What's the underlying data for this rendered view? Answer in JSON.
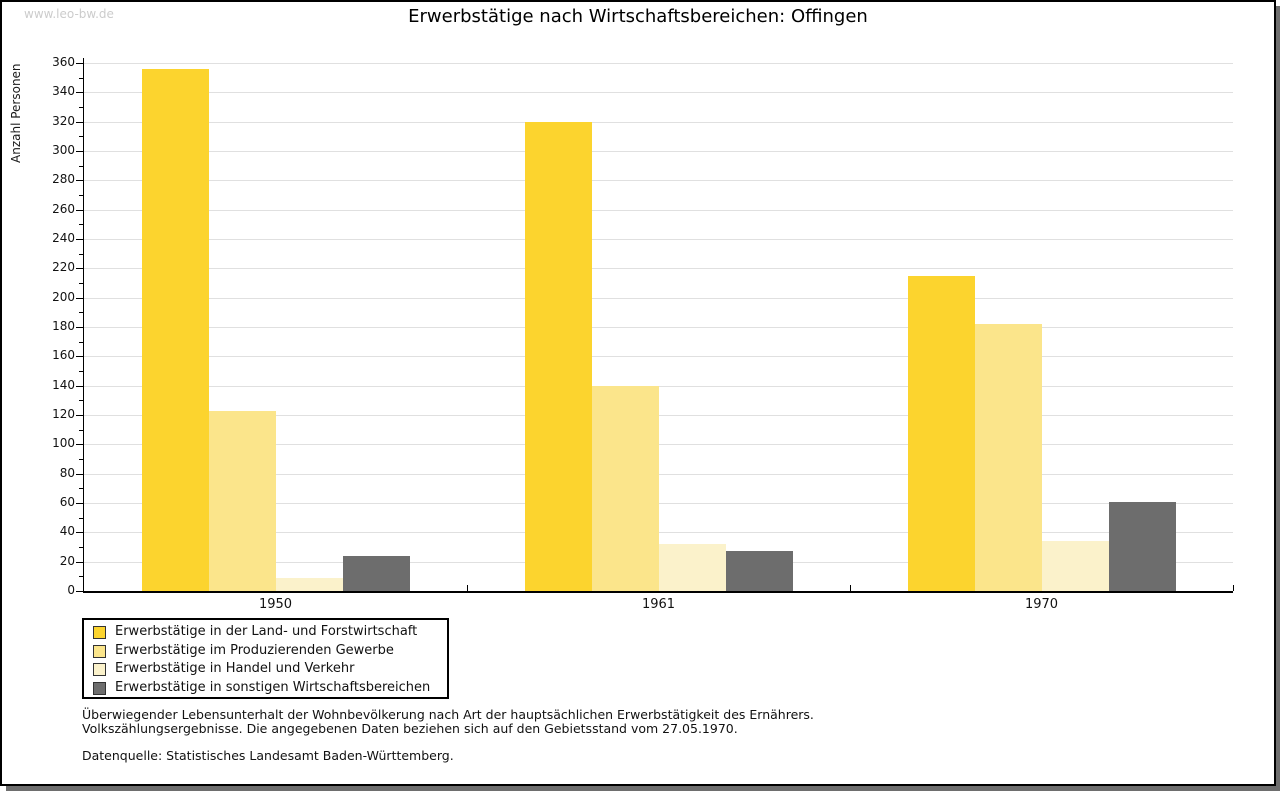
{
  "watermark": "www.leo-bw.de",
  "title": "Erwerbstätige nach Wirtschaftsbereichen: Offingen",
  "chart_data": {
    "type": "bar",
    "title": "Erwerbstätige nach Wirtschaftsbereichen: Offingen",
    "ylabel": "Anzahl Personen",
    "xlabel": "",
    "categories": [
      "1950",
      "1961",
      "1970"
    ],
    "series": [
      {
        "name": "Erwerbstätige in der Land- und Forstwirtschaft",
        "color": "#fcd42e",
        "values": [
          356,
          320,
          215
        ]
      },
      {
        "name": "Erwerbstätige im Produzierenden Gewerbe",
        "color": "#fbe58b",
        "values": [
          123,
          140,
          182
        ]
      },
      {
        "name": "Erwerbstätige in Handel und Verkehr",
        "color": "#fbf2cb",
        "values": [
          9,
          32,
          34
        ]
      },
      {
        "name": "Erwerbstätige in sonstigen Wirtschaftsbereichen",
        "color": "#6d6d6d",
        "values": [
          24,
          27,
          61
        ]
      }
    ],
    "ylim": [
      0,
      360
    ],
    "ytick_step": 20,
    "ytick_minor_step": 10,
    "grid": true,
    "legend_position": "bottom-left"
  },
  "footnotes": {
    "line1": "Überwiegender Lebensunterhalt der Wohnbevölkerung nach Art der hauptsächlichen Erwerbstätigkeit des Ernährers.",
    "line2": "Volkszählungsergebnisse. Die angegebenen Daten beziehen sich auf den Gebietsstand vom 27.05.1970.",
    "source": "Datenquelle: Statistisches Landesamt Baden-Württemberg."
  },
  "colors": {
    "grid": "#e0e0e0",
    "axis": "#000000",
    "watermark": "#cccccc",
    "shadow": "#6e6e6e"
  }
}
